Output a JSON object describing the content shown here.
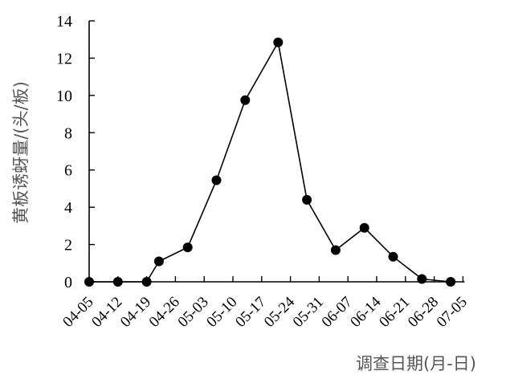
{
  "chart_data": {
    "type": "line",
    "xlabel": "调查日期(月-日)",
    "ylabel": "黄板诱蚜量/(头/板)",
    "ylim": [
      0,
      14
    ],
    "yticks": [
      0,
      2,
      4,
      6,
      8,
      10,
      12,
      14
    ],
    "grid": false,
    "legend": "none",
    "x_tick_labels": [
      "04-05",
      "04-12",
      "04-19",
      "04-26",
      "05-03",
      "05-10",
      "05-17",
      "05-24",
      "05-31",
      "06-07",
      "06-14",
      "06-21",
      "06-28",
      "07-05"
    ],
    "series": [
      {
        "marker": "circle",
        "color": "#000000",
        "points": [
          {
            "x": "04-05",
            "y": 0
          },
          {
            "x": "04-12",
            "y": 0
          },
          {
            "x": "04-19",
            "y": 0
          },
          {
            "x": "04-22",
            "y": 1.1
          },
          {
            "x": "04-29",
            "y": 1.85
          },
          {
            "x": "05-06",
            "y": 5.45
          },
          {
            "x": "05-13",
            "y": 9.75
          },
          {
            "x": "05-21",
            "y": 12.85
          },
          {
            "x": "05-28",
            "y": 4.4
          },
          {
            "x": "06-04",
            "y": 1.7
          },
          {
            "x": "06-11",
            "y": 2.9
          },
          {
            "x": "06-18",
            "y": 1.35
          },
          {
            "x": "06-25",
            "y": 0.15
          },
          {
            "x": "07-02",
            "y": 0
          }
        ]
      }
    ]
  }
}
